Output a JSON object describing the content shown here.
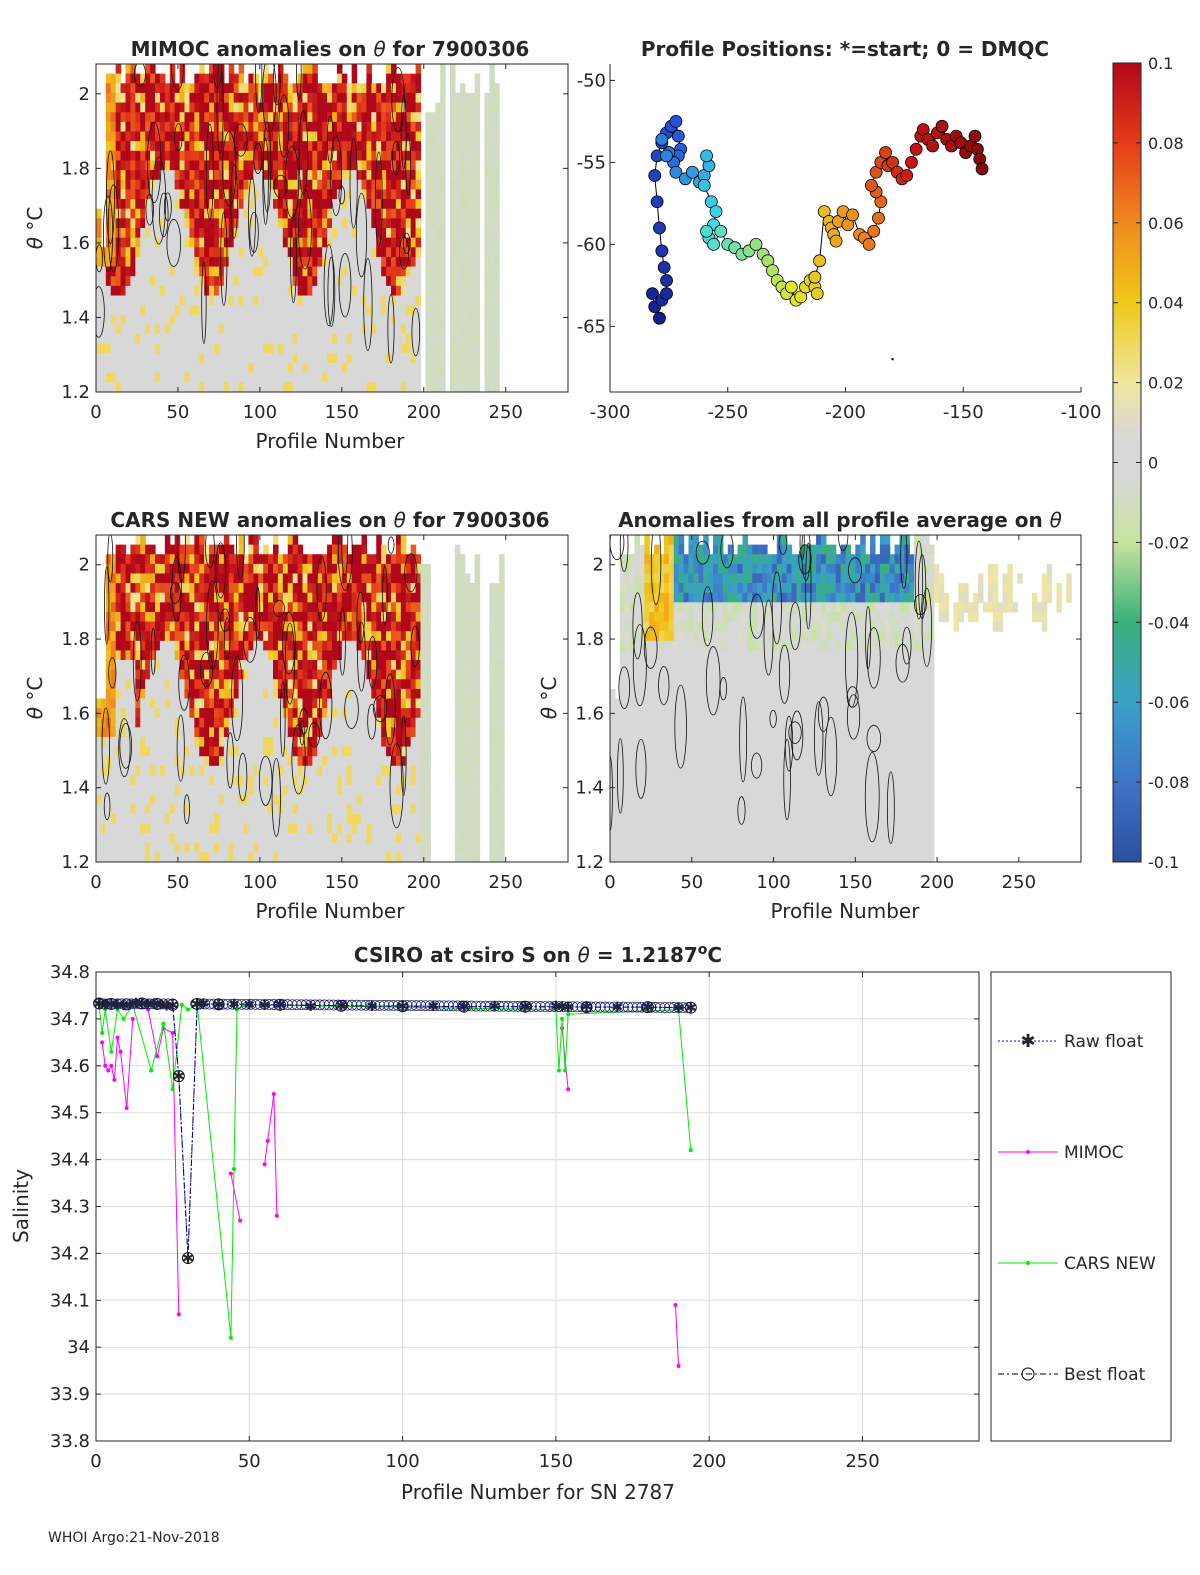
{
  "footer": "WHOI Argo:21-Nov-2018",
  "colors": {
    "mimoc": "#ff00ff",
    "cars": "#00ee00",
    "raw": "#0000ff",
    "best": "#000000"
  },
  "panels": {
    "mimoc": {
      "title_prefix": "MIMOC anomalies on ",
      "theta": "θ",
      "title_suffix": "  for 7900306",
      "ylabel_theta": "θ",
      "ylabel_unit": " °C",
      "xlabel": "Profile Number",
      "yticks": [
        "2",
        "1.8",
        "1.6",
        "1.4",
        "1.2"
      ],
      "xticks": [
        "0",
        "50",
        "100",
        "150",
        "200",
        "250"
      ]
    },
    "cars": {
      "title_prefix": "CARS NEW anomalies on ",
      "theta": "θ",
      "title_suffix": " for 7900306",
      "ylabel_theta": "θ",
      "ylabel_unit": " °C",
      "xlabel": "Profile Number",
      "yticks": [
        "2",
        "1.8",
        "1.6",
        "1.4",
        "1.2"
      ],
      "xticks": [
        "0",
        "50",
        "100",
        "150",
        "200",
        "250"
      ]
    },
    "avg": {
      "title_prefix": "Anomalies from all profile average on ",
      "theta": "θ",
      "ylabel_theta": "θ",
      "ylabel_unit": " °C",
      "xlabel": "Profile Number",
      "yticks": [
        "2",
        "1.8",
        "1.6",
        "1.4",
        "1.2"
      ],
      "xticks": [
        "0",
        "50",
        "100",
        "150",
        "200",
        "250"
      ]
    },
    "positions": {
      "title": "Profile Positions: *=start; 0 = DMQC",
      "yticks": [
        "-50",
        "-55",
        "-60",
        "-65"
      ],
      "xticks": [
        "-300",
        "-250",
        "-200",
        "-150",
        "-100"
      ]
    },
    "colorbar": {
      "ticks": [
        "0.1",
        "0.08",
        "0.06",
        "0.04",
        "0.02",
        "0",
        "-0.02",
        "-0.04",
        "-0.06",
        "-0.08",
        "-0.1"
      ]
    },
    "salinity": {
      "title_prefix": "CSIRO at csiro S on ",
      "theta": "θ",
      "title_mid": " = 1.2187",
      "title_sup": "o",
      "title_unit": "C",
      "ylabel": "Salinity",
      "xlabel": "Profile Number for SN 2787",
      "yticks": [
        "34.8",
        "34.7",
        "34.6",
        "34.5",
        "34.4",
        "34.3",
        "34.2",
        "34.1",
        "34",
        "33.9",
        "33.8"
      ],
      "xticks": [
        "0",
        "50",
        "100",
        "150",
        "200",
        "250"
      ]
    },
    "legend": {
      "raw": "Raw float",
      "mimoc": "MIMOC",
      "cars": "CARS NEW",
      "best": "Best float"
    }
  },
  "chart_data": [
    {
      "type": "heatmap",
      "title": "MIMOC anomalies on θ  for 7900306",
      "xlabel": "Profile Number",
      "ylabel": "θ °C",
      "xlim": [
        0,
        288
      ],
      "ylim": [
        1.2,
        2.08
      ],
      "color_range": [
        -0.1,
        0.1
      ],
      "profiles_with_data": [
        1,
        197
      ],
      "summary": "strong positive anomalies (≥0.08) above θ≈1.6°C for profiles 10–195; near-zero below"
    },
    {
      "type": "scatter",
      "title": "Profile Positions: *=start; 0 = DMQC",
      "xlim": [
        -300,
        -100
      ],
      "ylim": [
        -69,
        -49
      ],
      "segments": [
        {
          "x": [
            -279,
            -281,
            -282,
            -278,
            -276,
            -276,
            -277,
            -278,
            -279,
            -280,
            -281,
            -280,
            -278,
            -276,
            -274,
            -272,
            -271,
            -270,
            -271,
            -273,
            -275,
            -278,
            -276,
            -272,
            -268,
            -265,
            -262,
            -260,
            -258,
            -259,
            -260,
            -257,
            -255,
            -256,
            -258
          ],
          "y": [
            -64.5,
            -63.8,
            -63.0,
            -63.4,
            -63.0,
            -62.2,
            -61.4,
            -60.4,
            -59.0,
            -57.4,
            -55.8,
            -54.6,
            -53.8,
            -53.2,
            -52.8,
            -52.5,
            -53.4,
            -54.2,
            -54.6,
            -55.0,
            -54.4,
            -53.6,
            -54.6,
            -55.6,
            -56.0,
            -55.6,
            -56.2,
            -55.8,
            -55.2,
            -54.6,
            -56.4,
            -57.4,
            -58.0,
            -58.8,
            -59.6
          ]
        },
        {
          "x": [
            -259,
            -256,
            -253,
            -250,
            -247,
            -244,
            -241,
            -238,
            -235,
            -233,
            -231,
            -229,
            -227,
            -225,
            -223,
            -221,
            -219,
            -217,
            -215,
            -213,
            -212
          ],
          "y": [
            -59.2,
            -60.0,
            -59.2,
            -60.0,
            -60.2,
            -60.6,
            -60.4,
            -60.0,
            -60.6,
            -61.0,
            -61.6,
            -62.2,
            -62.6,
            -63.0,
            -62.6,
            -63.4,
            -63.2,
            -62.6,
            -62.2,
            -62.6,
            -63.0
          ]
        },
        {
          "x": [
            -213,
            -211,
            -209,
            -207,
            -206,
            -205,
            -204,
            -203,
            -201,
            -199,
            -197,
            -194,
            -192,
            -190,
            -188,
            -186,
            -185,
            -187,
            -189,
            -187,
            -185,
            -183
          ],
          "y": [
            -62.0,
            -61.0,
            -58.0,
            -58.6,
            -59.0,
            -59.4,
            -59.8,
            -58.6,
            -58.0,
            -58.8,
            -58.2,
            -59.4,
            -59.6,
            -60.0,
            -59.2,
            -58.4,
            -57.4,
            -56.8,
            -56.4,
            -55.6,
            -55.0,
            -54.4
          ]
        },
        {
          "x": [
            -182,
            -180,
            -178,
            -176,
            -174,
            -172,
            -170,
            -168,
            -167,
            -165,
            -163,
            -161,
            -159,
            -157,
            -155,
            -153,
            -151,
            -149,
            -147,
            -145,
            -144,
            -143,
            -142
          ],
          "y": [
            -55.2,
            -55.0,
            -55.6,
            -56.0,
            -55.8,
            -55.0,
            -54.2,
            -53.4,
            -53.0,
            -53.6,
            -54.0,
            -53.2,
            -52.8,
            -53.6,
            -54.0,
            -53.4,
            -53.8,
            -54.4,
            -54.0,
            -53.4,
            -54.2,
            -54.8,
            -55.4
          ]
        }
      ],
      "segment_colors": [
        "#1f3fd1",
        "#3ad9e0",
        "#f0e020",
        "#c81414"
      ]
    },
    {
      "type": "heatmap",
      "title": "CARS NEW anomalies on θ for 7900306",
      "xlabel": "Profile Number",
      "ylabel": "θ °C",
      "xlim": [
        0,
        288
      ],
      "ylim": [
        1.2,
        2.08
      ],
      "color_range": [
        -0.1,
        0.1
      ],
      "summary": "strong positive anomalies above θ≈1.55°C for profiles 25–195; sparse near-zero data beyond 200"
    },
    {
      "type": "heatmap",
      "title": "Anomalies from all profile average on θ",
      "xlabel": "Profile Number",
      "ylabel": "θ °C",
      "xlim": [
        0,
        288
      ],
      "ylim": [
        1.2,
        2.08
      ],
      "color_range": [
        -0.1,
        0.1
      ],
      "summary": "mostly near-zero; negative (blue) anomalies above θ≈1.95°C for profiles 40–185; small positive near top beyond 205"
    },
    {
      "type": "line",
      "title": "CSIRO at csiro S on θ = 1.2187°C",
      "xlabel": "Profile Number for SN 2787",
      "ylabel": "Salinity",
      "xlim": [
        0,
        288
      ],
      "ylim": [
        33.8,
        34.8
      ],
      "grid": true,
      "legend": "right",
      "series": [
        {
          "name": "Raw float",
          "style": "blue dotted, asterisk",
          "x": [
            1,
            3,
            5,
            7,
            9,
            11,
            13,
            15,
            17,
            19,
            21,
            23,
            25,
            27,
            30,
            33,
            35,
            40,
            45,
            50,
            55,
            60,
            70,
            80,
            90,
            100,
            110,
            120,
            130,
            140,
            150,
            152,
            154,
            160,
            170,
            180,
            190,
            194
          ],
          "y": [
            34.733,
            34.731,
            34.732,
            34.731,
            34.73,
            34.731,
            34.734,
            34.733,
            34.732,
            34.733,
            34.731,
            34.729,
            34.73,
            34.578,
            34.19,
            34.732,
            34.733,
            34.731,
            34.732,
            34.731,
            34.73,
            34.731,
            34.728,
            34.729,
            34.727,
            34.728,
            34.727,
            34.726,
            34.727,
            34.726,
            34.727,
            34.726,
            34.725,
            34.726,
            34.725,
            34.725,
            34.724,
            34.724
          ]
        },
        {
          "name": "MIMOC",
          "style": "magenta solid, dot",
          "x": [
            2,
            3,
            4,
            5,
            6,
            7,
            8,
            10,
            12,
            17,
            20,
            22,
            25,
            27,
            44,
            47,
            55,
            56,
            58,
            59,
            152,
            154,
            189,
            190
          ],
          "y": [
            34.65,
            34.6,
            34.59,
            34.6,
            34.57,
            34.66,
            34.63,
            34.51,
            34.7,
            34.72,
            34.62,
            34.68,
            34.67,
            34.07,
            34.37,
            34.27,
            34.39,
            34.44,
            34.54,
            34.28,
            34.68,
            34.55,
            34.09,
            33.96
          ]
        },
        {
          "name": "CARS NEW",
          "style": "green solid, dot",
          "x": [
            1,
            2,
            3,
            5,
            7,
            9,
            12,
            18,
            22,
            25,
            28,
            30,
            33,
            44,
            45,
            46,
            48,
            150,
            151,
            152,
            153,
            154,
            190,
            194
          ],
          "y": [
            34.73,
            34.67,
            34.72,
            34.63,
            34.72,
            34.7,
            34.73,
            34.59,
            34.69,
            34.55,
            34.73,
            34.72,
            34.73,
            34.02,
            34.38,
            34.72,
            34.73,
            34.72,
            34.59,
            34.7,
            34.59,
            34.71,
            34.72,
            34.42
          ]
        },
        {
          "name": "Best float",
          "style": "black dash-dot, circle",
          "x": [
            1,
            5,
            10,
            15,
            20,
            25,
            27,
            30,
            33,
            40,
            60,
            80,
            100,
            120,
            140,
            160,
            180,
            194
          ],
          "y": [
            34.733,
            34.732,
            34.731,
            34.733,
            34.732,
            34.73,
            34.578,
            34.19,
            34.732,
            34.731,
            34.73,
            34.728,
            34.727,
            34.726,
            34.726,
            34.725,
            34.725,
            34.724
          ]
        }
      ]
    }
  ]
}
